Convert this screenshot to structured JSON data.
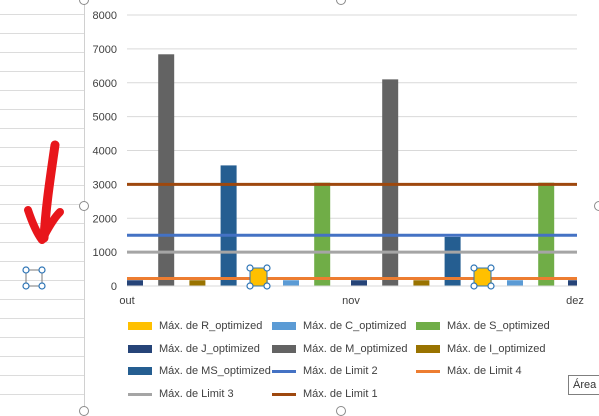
{
  "chart_data": {
    "type": "bar",
    "ylim": [
      0,
      8000
    ],
    "yticks": [
      0,
      1000,
      2000,
      3000,
      4000,
      5000,
      6000,
      7000,
      8000
    ],
    "xtick_labels": [
      "out",
      "nov",
      "dez"
    ],
    "grid": true,
    "legend_position": "bottom",
    "groups": [
      "out",
      "nov"
    ],
    "series": [
      {
        "name": "Máx. de J_optimized",
        "kind": "bar",
        "color": "#264478",
        "values": [
          170,
          170
        ]
      },
      {
        "name": "Máx. de M_optimized",
        "kind": "bar",
        "color": "#636363",
        "values": [
          6840,
          6100
        ]
      },
      {
        "name": "Máx. de I_optimized",
        "kind": "bar",
        "color": "#997300",
        "values": [
          170,
          170
        ]
      },
      {
        "name": "Máx. de MS_optimized",
        "kind": "bar",
        "color": "#255E91",
        "values": [
          3560,
          1450
        ]
      },
      {
        "name": "Máx. de R_optimized",
        "kind": "bar",
        "color": "#FFC000",
        "values": [
          270,
          270
        ]
      },
      {
        "name": "Máx. de C_optimized",
        "kind": "bar",
        "color": "#5B9BD5",
        "values": [
          170,
          170
        ]
      },
      {
        "name": "Máx. de S_optimized",
        "kind": "bar",
        "color": "#70AD47",
        "values": [
          3050,
          3050
        ]
      },
      {
        "name": "Máx. de Limit 2",
        "kind": "line",
        "color": "#4472C4",
        "value": 1500
      },
      {
        "name": "Máx. de Limit 4",
        "kind": "line",
        "color": "#ED7D31",
        "value": 220
      },
      {
        "name": "Máx. de Limit 3",
        "kind": "line",
        "color": "#A5A5A5",
        "value": 1000
      },
      {
        "name": "Máx. de Limit 1",
        "kind": "line",
        "color": "#9E480E",
        "value": 3000
      }
    ]
  },
  "legend": [
    {
      "label": "Máx. de R_optimized",
      "color": "#FFC000",
      "kind": "bar"
    },
    {
      "label": "Máx. de C_optimized",
      "color": "#5B9BD5",
      "kind": "bar"
    },
    {
      "label": "Máx. de S_optimized",
      "color": "#70AD47",
      "kind": "bar"
    },
    {
      "label": "Máx. de J_optimized",
      "color": "#264478",
      "kind": "bar"
    },
    {
      "label": "Máx. de M_optimized",
      "color": "#636363",
      "kind": "bar"
    },
    {
      "label": "Máx. de I_optimized",
      "color": "#997300",
      "kind": "bar"
    },
    {
      "label": "Máx. de MS_optimized",
      "color": "#255E91",
      "kind": "bar"
    },
    {
      "label": "Máx. de Limit 2",
      "color": "#4472C4",
      "kind": "line"
    },
    {
      "label": "Máx. de Limit 4",
      "color": "#ED7D31",
      "kind": "line"
    },
    {
      "label": "Máx. de Limit 3",
      "color": "#A5A5A5",
      "kind": "line"
    },
    {
      "label": "Máx. de Limit 1",
      "color": "#9E480E",
      "kind": "line"
    }
  ],
  "tooltip": {
    "text": "Área"
  },
  "annotation": {
    "arrow_color": "#E8161B",
    "shape_fill": "#FFC000",
    "handle_color": "#2E75B6"
  }
}
